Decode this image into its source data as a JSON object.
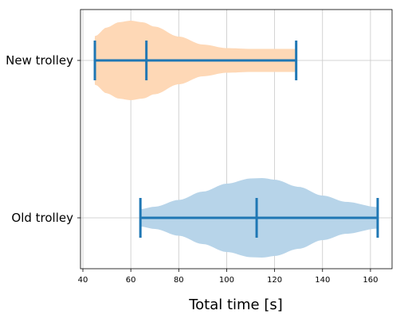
{
  "chart_data": {
    "type": "violin",
    "orientation": "horizontal",
    "xlabel": "Total time [s]",
    "ylabel": "",
    "xlim": [
      39,
      169
    ],
    "xticks": [
      40,
      60,
      80,
      100,
      120,
      140,
      160
    ],
    "grid": true,
    "categories": [
      "Old trolley",
      "New trolley"
    ],
    "series": [
      {
        "category": "Old trolley",
        "color": "#b7d4e9",
        "min": 64,
        "median": 112.5,
        "max": 163,
        "density_profile": [
          [
            64,
            0.22
          ],
          [
            70,
            0.28
          ],
          [
            80,
            0.45
          ],
          [
            90,
            0.66
          ],
          [
            100,
            0.86
          ],
          [
            110,
            0.99
          ],
          [
            115,
            1.0
          ],
          [
            120,
            0.96
          ],
          [
            130,
            0.78
          ],
          [
            140,
            0.56
          ],
          [
            150,
            0.4
          ],
          [
            163,
            0.27
          ]
        ]
      },
      {
        "category": "New trolley",
        "color": "#fed8b6",
        "min": 45,
        "median": 66.5,
        "max": 129,
        "density_profile": [
          [
            45,
            0.61
          ],
          [
            50,
            0.83
          ],
          [
            55,
            0.96
          ],
          [
            60,
            1.0
          ],
          [
            65,
            0.96
          ],
          [
            70,
            0.85
          ],
          [
            80,
            0.6
          ],
          [
            90,
            0.4
          ],
          [
            100,
            0.31
          ],
          [
            110,
            0.29
          ],
          [
            129,
            0.29
          ]
        ]
      }
    ],
    "marker_color": "#1f77b4"
  }
}
